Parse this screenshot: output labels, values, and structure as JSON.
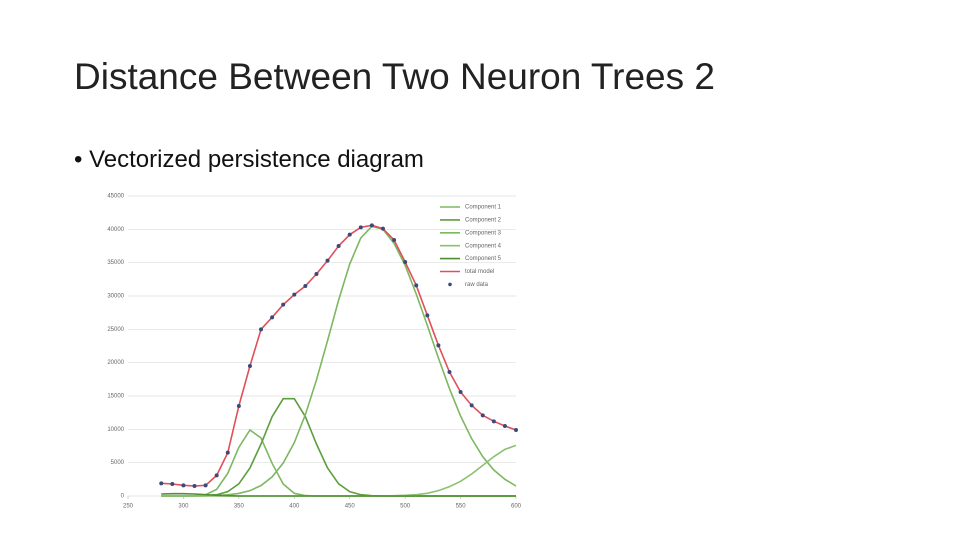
{
  "slide": {
    "title": "Distance Between Two Neuron Trees 2",
    "bullet": "Vectorized persistence diagram"
  },
  "chart_data": {
    "type": "line",
    "x": [
      280,
      290,
      300,
      310,
      320,
      330,
      340,
      350,
      360,
      370,
      380,
      390,
      400,
      410,
      420,
      430,
      440,
      450,
      460,
      470,
      480,
      490,
      500,
      510,
      520,
      530,
      540,
      550,
      560,
      570,
      580,
      590,
      600
    ],
    "xlim": [
      250,
      600
    ],
    "xticks": [
      250,
      300,
      350,
      400,
      450,
      500,
      550,
      600
    ],
    "ylim": [
      0,
      45000
    ],
    "yticks": [
      0,
      5000,
      10000,
      15000,
      20000,
      25000,
      30000,
      35000,
      40000,
      45000
    ],
    "grid": true,
    "legend": "top-right",
    "series": [
      {
        "name": "Component 1",
        "color": "#7cb860",
        "style": "line",
        "values": [
          0,
          0,
          0,
          50,
          200,
          1000,
          3400,
          7300,
          9900,
          8700,
          4900,
          1800,
          400,
          60,
          0,
          0,
          0,
          0,
          0,
          0,
          0,
          0,
          0,
          0,
          0,
          0,
          0,
          0,
          0,
          0,
          0,
          0,
          0
        ]
      },
      {
        "name": "Component 2",
        "color": "#5e9e3e",
        "style": "line",
        "values": [
          0,
          0,
          0,
          0,
          45,
          190,
          660,
          1830,
          4200,
          7800,
          11900,
          14600,
          14600,
          11900,
          7800,
          4200,
          1830,
          660,
          190,
          45,
          0,
          0,
          0,
          0,
          0,
          0,
          0,
          0,
          0,
          0,
          0,
          0,
          0
        ]
      },
      {
        "name": "Component 3",
        "color": "#7cb860",
        "style": "line",
        "values": [
          0,
          0,
          4,
          10,
          30,
          75,
          175,
          390,
          800,
          1570,
          2860,
          4950,
          8000,
          12200,
          17400,
          23300,
          29400,
          34800,
          38700,
          40450,
          40000,
          37900,
          34600,
          30300,
          25600,
          20700,
          16100,
          12000,
          8600,
          5900,
          3900,
          2500,
          1500
        ]
      },
      {
        "name": "Component 4",
        "color": "#8cc070",
        "style": "line",
        "values": [
          0,
          0,
          0,
          0,
          0,
          0,
          0,
          0,
          0,
          0,
          0,
          0,
          0,
          0,
          0,
          0,
          0,
          0,
          0,
          0,
          0,
          50,
          100,
          200,
          400,
          800,
          1400,
          2200,
          3300,
          4600,
          5900,
          7000,
          7600
        ]
      },
      {
        "name": "Component 5",
        "color": "#4f8f30",
        "style": "line",
        "values": [
          300,
          350,
          350,
          300,
          200,
          100,
          50,
          0,
          0,
          0,
          0,
          0,
          0,
          0,
          0,
          0,
          0,
          0,
          0,
          0,
          0,
          0,
          0,
          0,
          0,
          0,
          0,
          0,
          0,
          0,
          0,
          0,
          0
        ]
      },
      {
        "name": "total model",
        "color": "#e0505a",
        "style": "line",
        "values": [
          1900,
          1800,
          1600,
          1500,
          1600,
          3100,
          6500,
          13500,
          19500,
          25000,
          26800,
          28700,
          30200,
          31500,
          33300,
          35300,
          37500,
          39200,
          40300,
          40600,
          40100,
          38400,
          35100,
          31600,
          27100,
          22600,
          18600,
          15600,
          13600,
          12100,
          11200,
          10500,
          9900
        ]
      },
      {
        "name": "raw data",
        "color": "#3b4a78",
        "style": "dots",
        "values": [
          1900,
          1800,
          1600,
          1500,
          1600,
          3100,
          6500,
          13500,
          19500,
          25000,
          26800,
          28700,
          30200,
          31500,
          33300,
          35300,
          37500,
          39200,
          40300,
          40600,
          40100,
          38400,
          35100,
          31600,
          27100,
          22600,
          18600,
          15600,
          13600,
          12100,
          11200,
          10500,
          9900
        ]
      }
    ]
  }
}
